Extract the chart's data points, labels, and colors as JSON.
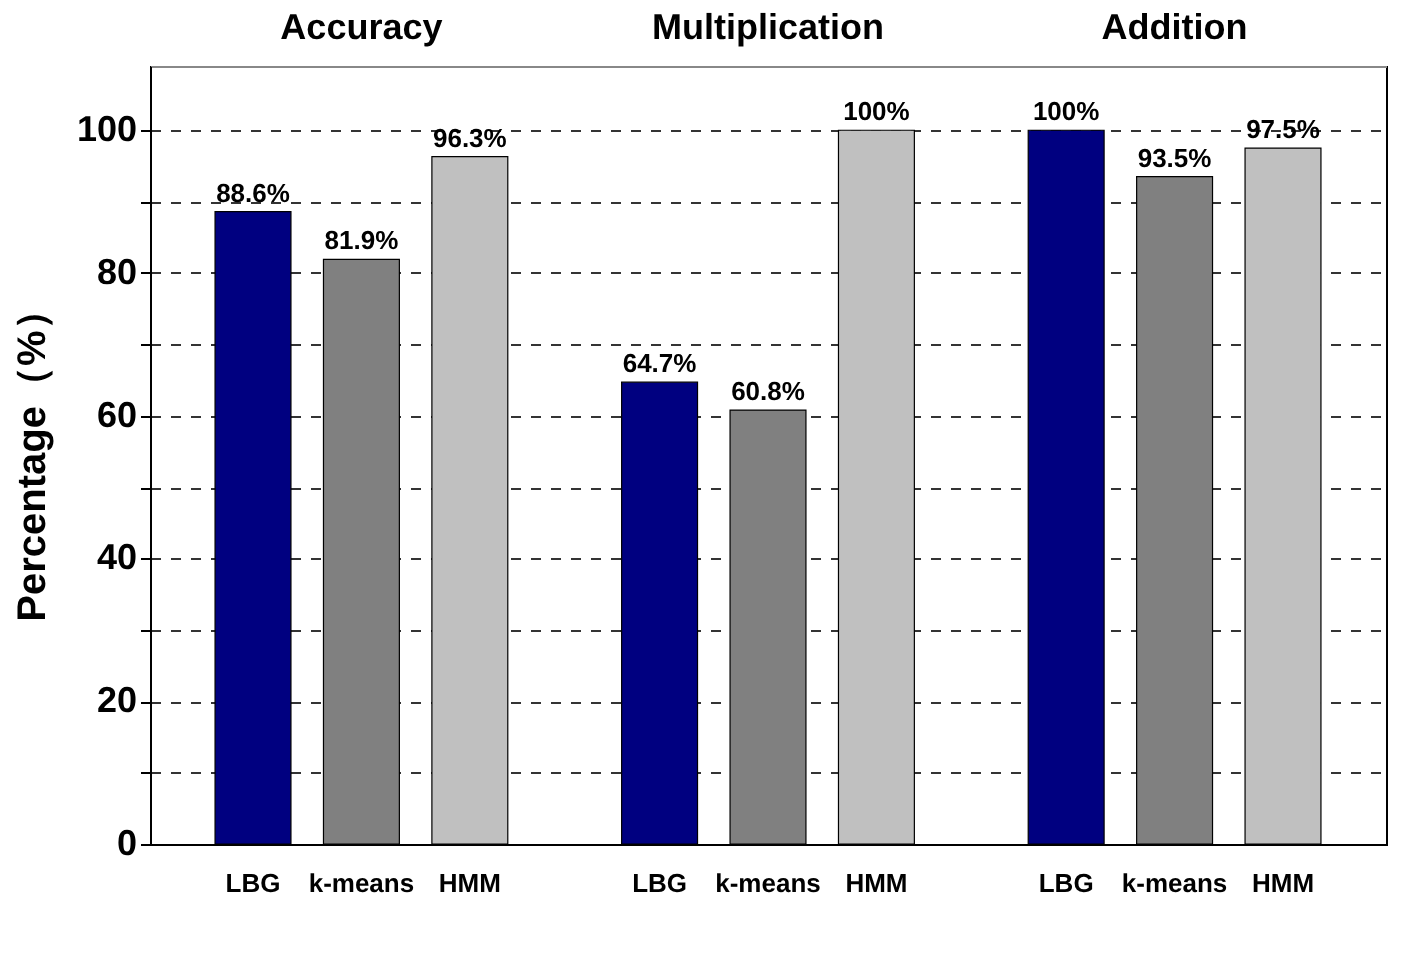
{
  "chart_data": {
    "type": "bar",
    "ylabel": "Percentage（%）",
    "categories": [
      "Accuracy",
      "Multiplication",
      "Addition"
    ],
    "series": [
      {
        "name": "LBG",
        "color": "#000080",
        "values": [
          88.6,
          64.7,
          100
        ],
        "value_labels": [
          "88.6%",
          "64.7%",
          "100%"
        ]
      },
      {
        "name": "k-means",
        "color": "#808080",
        "values": [
          81.9,
          60.8,
          93.5
        ],
        "value_labels": [
          "81.9%",
          "60.8%",
          "93.5%"
        ]
      },
      {
        "name": "HMM",
        "color": "#c0c0c0",
        "values": [
          96.3,
          100,
          97.5
        ],
        "value_labels": [
          "96.3%",
          "100%",
          "97.5%"
        ]
      }
    ],
    "ylim": [
      0,
      109
    ],
    "yticks": [
      0,
      {
        "value": 10,
        "label": null
      },
      20,
      {
        "value": 30,
        "label": null
      },
      40,
      {
        "value": 50,
        "label": null
      },
      60,
      {
        "value": 70,
        "label": null
      },
      80,
      {
        "value": 90,
        "label": null
      },
      100
    ],
    "grid": "y",
    "legend": false
  }
}
